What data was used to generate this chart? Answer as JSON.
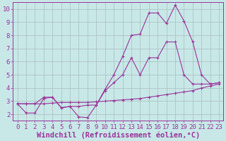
{
  "xlabel": "Windchill (Refroidissement éolien,°C)",
  "bg_color": "#c8e8e8",
  "grid_color": "#aabbbb",
  "line_color": "#993399",
  "xlim": [
    -0.5,
    23.5
  ],
  "ylim": [
    1.5,
    10.5
  ],
  "xticks": [
    0,
    1,
    2,
    3,
    4,
    5,
    6,
    7,
    8,
    9,
    10,
    11,
    12,
    13,
    14,
    15,
    16,
    17,
    18,
    19,
    20,
    21,
    22,
    23
  ],
  "yticks": [
    2,
    3,
    4,
    5,
    6,
    7,
    8,
    9,
    10
  ],
  "line1_x": [
    0,
    1,
    2,
    3,
    4,
    5,
    6,
    7,
    8,
    9,
    10,
    11,
    12,
    13,
    14,
    15,
    16,
    17,
    18,
    19,
    20,
    21,
    22,
    23
  ],
  "line1_y": [
    2.8,
    2.8,
    2.8,
    2.8,
    2.85,
    2.9,
    2.9,
    2.9,
    2.9,
    2.95,
    3.0,
    3.05,
    3.1,
    3.15,
    3.2,
    3.3,
    3.4,
    3.5,
    3.6,
    3.7,
    3.8,
    4.0,
    4.15,
    4.3
  ],
  "line2_x": [
    0,
    1,
    2,
    3,
    4,
    5,
    6,
    7,
    8,
    9,
    10,
    11,
    12,
    13,
    14,
    15,
    16,
    17,
    18,
    19,
    20,
    21,
    22,
    23
  ],
  "line2_y": [
    2.8,
    2.1,
    2.1,
    3.2,
    3.3,
    2.5,
    2.6,
    1.8,
    1.75,
    2.7,
    3.8,
    4.4,
    5.0,
    6.3,
    5.0,
    6.3,
    6.3,
    7.5,
    7.5,
    5.0,
    4.3,
    4.3,
    4.3,
    4.4
  ],
  "line3_x": [
    0,
    1,
    2,
    3,
    4,
    5,
    6,
    7,
    8,
    9,
    10,
    11,
    12,
    13,
    14,
    15,
    16,
    17,
    18,
    19,
    20,
    21,
    22,
    23
  ],
  "line3_y": [
    2.8,
    2.8,
    2.8,
    3.3,
    3.3,
    2.5,
    2.6,
    2.6,
    2.7,
    2.7,
    3.9,
    5.0,
    6.4,
    8.0,
    8.1,
    9.7,
    9.7,
    8.9,
    10.3,
    9.1,
    7.5,
    5.0,
    4.3,
    4.4
  ],
  "font_family": "monospace",
  "tick_fontsize": 6.5,
  "xlabel_fontsize": 7.5
}
